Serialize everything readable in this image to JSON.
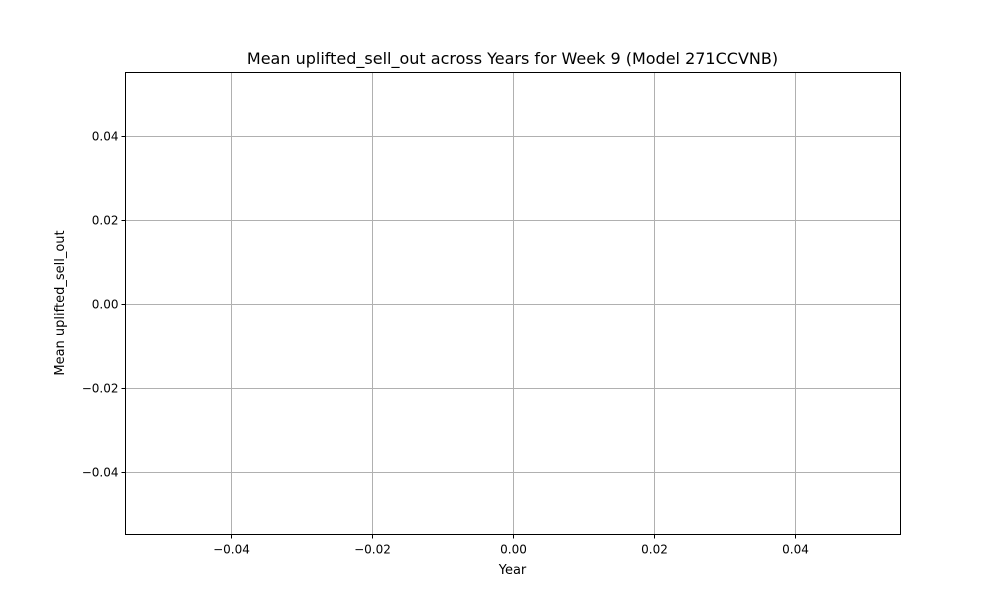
{
  "chart_data": {
    "type": "line",
    "title": "Mean uplifted_sell_out across Years for Week 9 (Model 271CCVNB)",
    "xlabel": "Year",
    "ylabel": "Mean uplifted_sell_out",
    "xlim": [
      -0.055,
      0.055
    ],
    "ylim": [
      -0.055,
      0.055
    ],
    "xticks": [
      -0.04,
      -0.02,
      0.0,
      0.02,
      0.04
    ],
    "xtick_labels": [
      "−0.04",
      "−0.02",
      "0.00",
      "0.02",
      "0.04"
    ],
    "yticks": [
      0.04,
      0.02,
      0.0,
      -0.02,
      -0.04
    ],
    "ytick_labels": [
      "0.04",
      "0.02",
      "0.00",
      "−0.02",
      "−0.04"
    ],
    "grid": true,
    "series": [
      {
        "x": [],
        "y": []
      }
    ]
  }
}
